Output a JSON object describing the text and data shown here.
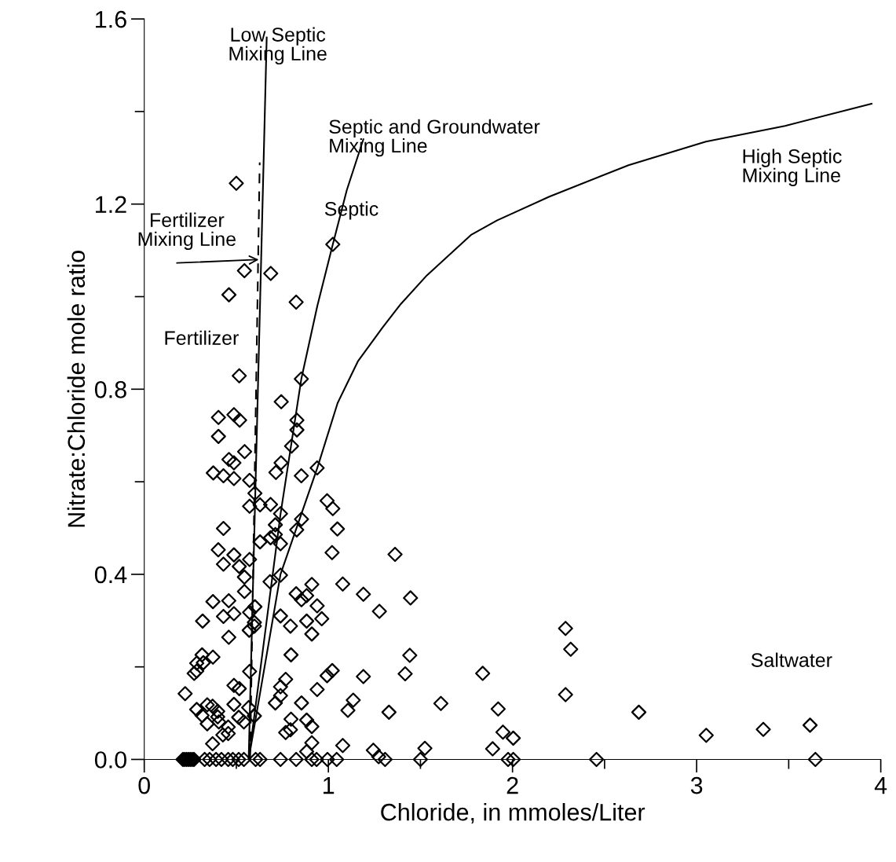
{
  "chart_data": {
    "type": "scatter",
    "xlabel": "Chloride, in mmoles/Liter",
    "ylabel": "Nitrate:Chloride mole ratio",
    "xlim": [
      0,
      4
    ],
    "ylim": [
      0,
      1.6
    ],
    "xticks": [
      0,
      {
        "value": 0.5,
        "label": null
      },
      1,
      {
        "value": 1.5,
        "label": null
      },
      2,
      {
        "value": 2.5,
        "label": null
      },
      3,
      {
        "value": 3.5,
        "label": null
      },
      4
    ],
    "yticks": [
      {
        "value": 0,
        "label": "0.0"
      },
      {
        "value": 0.2,
        "label": null
      },
      {
        "value": 0.4,
        "label": "0.4"
      },
      {
        "value": 0.6,
        "label": null
      },
      {
        "value": 0.8,
        "label": "0.8"
      },
      {
        "value": 1.0,
        "label": null
      },
      {
        "value": 1.2,
        "label": "1.2"
      },
      {
        "value": 1.4,
        "label": null
      },
      {
        "value": 1.6,
        "label": "1.6"
      }
    ],
    "grid": false,
    "legend": false,
    "annotations": [
      "Fertilizer",
      "Septic",
      "Saltwater",
      {
        "text": "Fertilizer\nMixing Line",
        "x": 0.622,
        "y": 1.08
      }
    ],
    "series": [
      {
        "color": "#000000",
        "marker": "diamond",
        "x": [
          1.024,
          0.544,
          0.687,
          0.46,
          0.825,
          0.516,
          0.853,
          0.744,
          0.403,
          0.487,
          0.518,
          0.829,
          0.829,
          0.403,
          0.8,
          0.545,
          0.46,
          0.487,
          0.743,
          0.939,
          0.5,
          0.375,
          0.43,
          0.487,
          0.572,
          0.715,
          0.853,
          0.601,
          0.572,
          0.629,
          0.686,
          0.74,
          0.993,
          1.024,
          0.854,
          0.712,
          0.43,
          1.049,
          0.828,
          0.712,
          0.686,
          0.74,
          0.629,
          0.402,
          0.487,
          0.572,
          0.43,
          0.516,
          1.02,
          1.362,
          0.544,
          0.74,
          0.683,
          0.544,
          0.91,
          1.078,
          1.19,
          0.825,
          0.882,
          0.854,
          1.277,
          0.373,
          0.459,
          0.939,
          0.601,
          0.572,
          0.487,
          0.43,
          0.317,
          0.74,
          0.882,
          0.964,
          0.598,
          0.598,
          0.57,
          0.794,
          0.91,
          0.459,
          0.797,
          0.314,
          0.285,
          0.321,
          0.285,
          0.271,
          0.373,
          0.572,
          1.021,
          0.993,
          1.19,
          0.768,
          0.74,
          0.487,
          0.516,
          0.939,
          0.222,
          0.74,
          0.712,
          1.135,
          1.106,
          0.854,
          0.487,
          1.329,
          0.285,
          0.342,
          0.371,
          0.399,
          0.314,
          0.399,
          0.342,
          0.405,
          0.456,
          0.456,
          0.427,
          0.371,
          0.567,
          0.598,
          0.513,
          0.541,
          0.797,
          0.768,
          0.794,
          0.882,
          0.91,
          0.91,
          0.882,
          1.078,
          1.244,
          1.273,
          1.446,
          1.442,
          1.417,
          1.611,
          1.838,
          1.922,
          1.948,
          2.004,
          1.892,
          2.288,
          2.316,
          2.288,
          1.524,
          2.686,
          3.052,
          3.362,
          3.616,
          0.21,
          0.22,
          0.23,
          0.24,
          0.25,
          0.26,
          0.27,
          0.328,
          0.355,
          0.39,
          0.419,
          0.456,
          0.481,
          0.513,
          0.541,
          0.605,
          0.629,
          0.74,
          0.825,
          0.91,
          0.936,
          0.995,
          1.045,
          1.308,
          1.5,
          1.976,
          2.004,
          2.456,
          3.645
        ],
        "values": [
          1.113,
          1.056,
          1.05,
          1.004,
          0.988,
          0.829,
          0.822,
          0.773,
          0.739,
          0.745,
          0.733,
          0.733,
          0.712,
          0.698,
          0.677,
          0.665,
          0.648,
          0.641,
          0.641,
          0.63,
          1.245,
          0.619,
          0.613,
          0.607,
          0.603,
          0.62,
          0.613,
          0.575,
          0.547,
          0.55,
          0.551,
          0.531,
          0.559,
          0.542,
          0.519,
          0.507,
          0.499,
          0.498,
          0.496,
          0.486,
          0.479,
          0.466,
          0.47,
          0.453,
          0.442,
          0.432,
          0.422,
          0.417,
          0.447,
          0.443,
          0.394,
          0.398,
          0.384,
          0.363,
          0.378,
          0.379,
          0.357,
          0.358,
          0.354,
          0.345,
          0.32,
          0.341,
          0.343,
          0.332,
          0.33,
          0.318,
          0.315,
          0.309,
          0.299,
          0.31,
          0.299,
          0.304,
          0.296,
          0.288,
          0.279,
          0.288,
          0.271,
          0.264,
          0.226,
          0.226,
          0.208,
          0.209,
          0.191,
          0.186,
          0.221,
          0.19,
          0.192,
          0.181,
          0.179,
          0.173,
          0.157,
          0.16,
          0.153,
          0.151,
          0.142,
          0.138,
          0.122,
          0.128,
          0.106,
          0.122,
          0.119,
          0.102,
          0.108,
          0.118,
          0.115,
          0.104,
          0.095,
          0.092,
          0.077,
          0.081,
          0.07,
          0.056,
          0.053,
          0.034,
          0.112,
          0.094,
          0.091,
          0.081,
          0.087,
          0.058,
          0.064,
          0.085,
          0.071,
          0.036,
          0.017,
          0.03,
          0.02,
          0.006,
          0.349,
          0.225,
          0.185,
          0.121,
          0.186,
          0.109,
          0.059,
          0.046,
          0.023,
          0.283,
          0.238,
          0.14,
          0.024,
          0.102,
          0.052,
          0.065,
          0.074,
          0,
          0,
          0,
          0,
          0,
          0,
          0,
          0,
          0,
          0,
          0,
          0,
          0,
          0,
          0,
          0,
          0,
          0,
          0,
          0,
          0,
          0,
          0,
          0,
          0,
          0,
          0,
          0,
          0
        ]
      },
      {
        "type": "line",
        "name": "Low Septic\nMixing Line",
        "color": "#000000",
        "line_style": "solid",
        "x": [
          0.567,
          0.665
        ],
        "values": [
          0,
          1.56
        ]
      },
      {
        "type": "line",
        "color": "#000000",
        "line_style": "dashed",
        "x": [
          0.575,
          0.627
        ],
        "values": [
          0,
          1.29
        ]
      },
      {
        "type": "line",
        "name": "Septic and Groundwater\nMixing Line",
        "color": "#000000",
        "line_style": "solid",
        "x": [
          0.567,
          0.74,
          0.853,
          0.94,
          1.024,
          1.1,
          1.19
        ],
        "values": [
          0,
          0.53,
          0.822,
          0.98,
          1.113,
          1.23,
          1.34
        ]
      },
      {
        "type": "line",
        "name": "High Septic\nMixing Line",
        "color": "#000000",
        "line_style": "solid",
        "x": [
          0.567,
          0.74,
          0.94,
          1.05,
          1.16,
          1.294,
          1.393,
          1.535,
          1.777,
          1.917,
          2.2,
          2.63,
          3.05,
          3.48,
          3.95
        ],
        "values": [
          0,
          0.4,
          0.63,
          0.77,
          0.86,
          0.933,
          0.984,
          1.046,
          1.134,
          1.165,
          1.216,
          1.284,
          1.335,
          1.369,
          1.417
        ]
      }
    ]
  }
}
